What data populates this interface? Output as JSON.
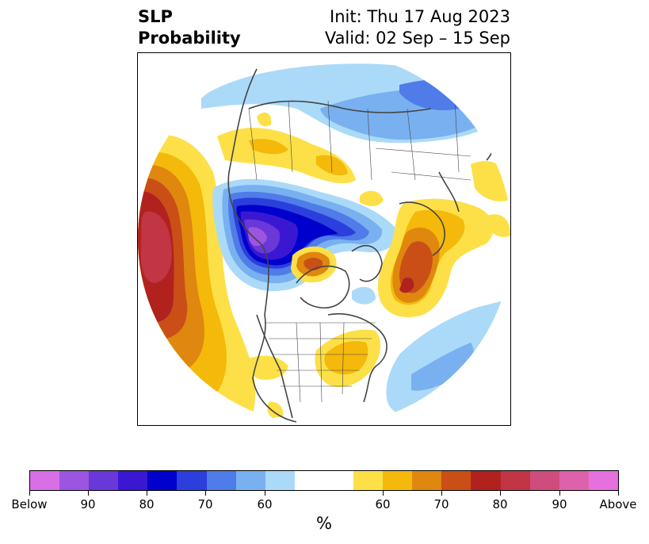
{
  "title": {
    "variable_line1": "SLP",
    "variable_line2": "Probability",
    "init": "Init: Thu 17 Aug 2023",
    "valid": "Valid: 02 Sep – 15 Sep"
  },
  "colorbar": {
    "unit": "%",
    "tick_labels": [
      "Below",
      "90",
      "80",
      "70",
      "60",
      "60",
      "70",
      "80",
      "90",
      "Above"
    ],
    "below_colors": [
      "#d96fe6",
      "#9b55e0",
      "#6a37d8",
      "#3a18d2",
      "#0000cd",
      "#2b3fdc",
      "#4f7ce8",
      "#79b0f0",
      "#abdaf8"
    ],
    "neutral_color": "#ffffff",
    "above_colors": [
      "#fde047",
      "#f4b90a",
      "#df870f",
      "#c94f17",
      "#b1221f",
      "#c13544",
      "#cf4d7c",
      "#dd62ab",
      "#e670dd"
    ]
  }
}
